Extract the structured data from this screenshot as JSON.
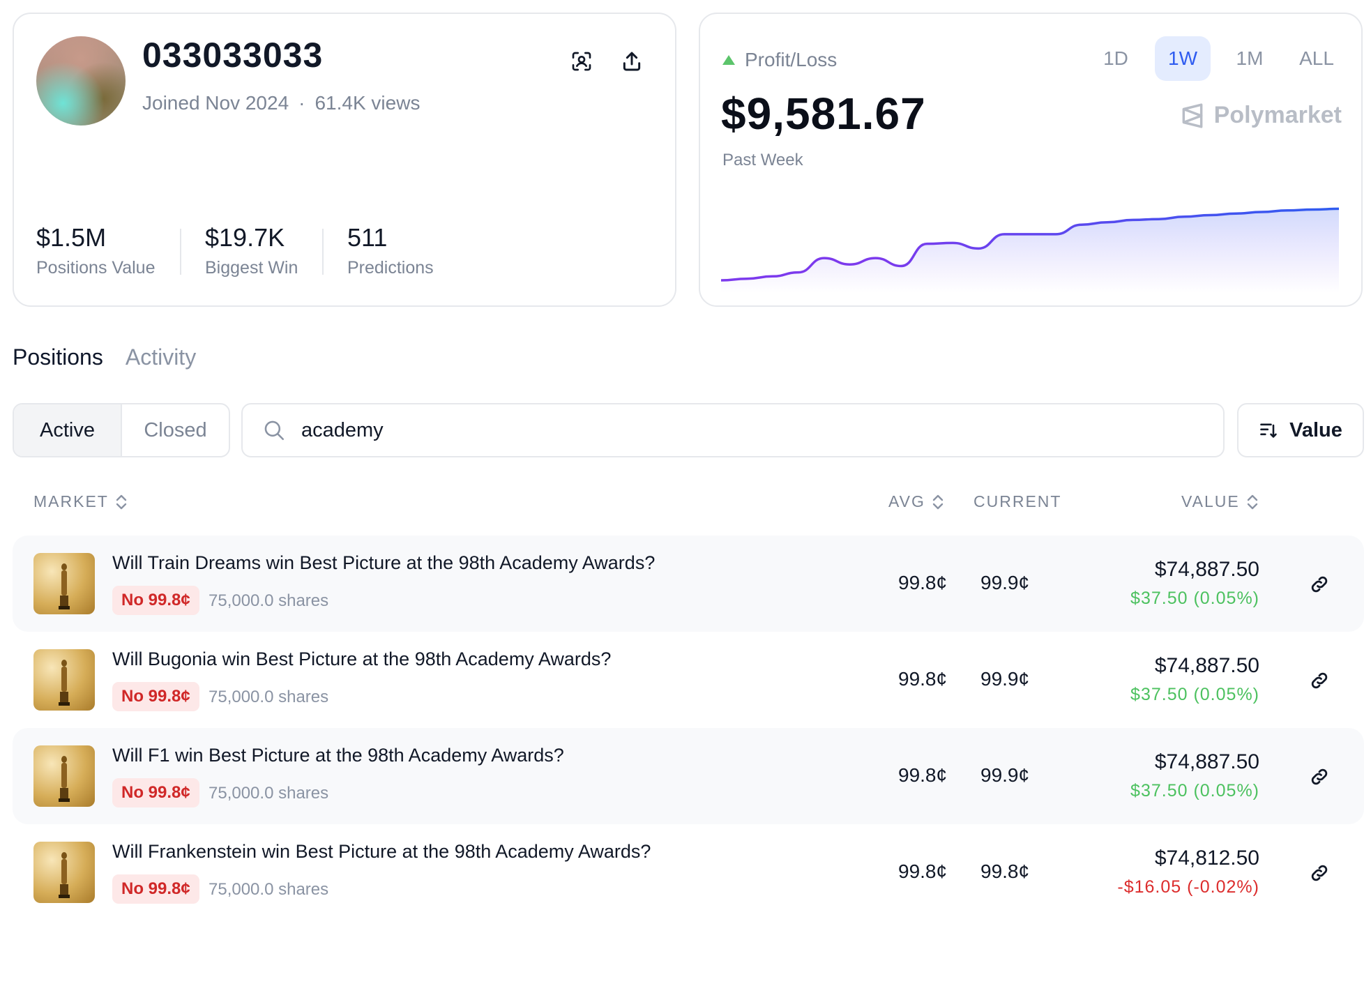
{
  "profile": {
    "username": "033033033",
    "joined": "Joined Nov 2024",
    "views": "61.4K views",
    "stats": [
      {
        "value": "$1.5M",
        "label": "Positions Value"
      },
      {
        "value": "$19.7K",
        "label": "Biggest Win"
      },
      {
        "value": "511",
        "label": "Predictions"
      }
    ]
  },
  "pnl": {
    "label": "Profit/Loss",
    "value": "$9,581.67",
    "period": "Past Week",
    "brand": "Polymarket",
    "ranges": [
      "1D",
      "1W",
      "1M",
      "ALL"
    ],
    "active_range": "1W"
  },
  "chart_data": {
    "type": "area",
    "series": [
      {
        "values": [
          0,
          0.02,
          0.05,
          0.1,
          0.28,
          0.2,
          0.28,
          0.18,
          0.46,
          0.47,
          0.4,
          0.58,
          0.58,
          0.58,
          0.7,
          0.73,
          0.76,
          0.77,
          0.8,
          0.82,
          0.84,
          0.86,
          0.88,
          0.89,
          0.9
        ]
      }
    ],
    "grid": false
  },
  "tabs": [
    "Positions",
    "Activity"
  ],
  "filter": {
    "active_label": "Active",
    "closed_label": "Closed"
  },
  "search": {
    "value": "academy"
  },
  "sort": {
    "label": "Value"
  },
  "columns": {
    "market": "MARKET",
    "avg": "AVG",
    "current": "CURRENT",
    "value": "VALUE"
  },
  "positions": [
    {
      "question": "Will Train Dreams win Best Picture at the 98th Academy Awards?",
      "outcome": "No 99.8¢",
      "shares": "75,000.0 shares",
      "avg": "99.8¢",
      "current": "99.9¢",
      "value": "$74,887.50",
      "delta": "$37.50 (0.05%)"
    },
    {
      "question": "Will Bugonia win Best Picture at the 98th Academy Awards?",
      "outcome": "No 99.8¢",
      "shares": "75,000.0 shares",
      "avg": "99.8¢",
      "current": "99.9¢",
      "value": "$74,887.50",
      "delta": "$37.50 (0.05%)"
    },
    {
      "question": "Will F1 win Best Picture at the 98th Academy Awards?",
      "outcome": "No 99.8¢",
      "shares": "75,000.0 shares",
      "avg": "99.8¢",
      "current": "99.9¢",
      "value": "$74,887.50",
      "delta": "$37.50 (0.05%)"
    },
    {
      "question": "Will Frankenstein win Best Picture at the 98th Academy Awards?",
      "outcome": "No 99.8¢",
      "shares": "75,000.0 shares",
      "avg": "99.8¢",
      "current": "99.8¢",
      "value": "$74,812.50",
      "delta": "-$16.05 (-0.02%)"
    }
  ],
  "colors": {
    "positive": "#4cc15f",
    "negative": "#dc2d2d",
    "accent": "#2f5cf0",
    "line_start": "#7c3aed",
    "line_end": "#2f5cf0"
  }
}
